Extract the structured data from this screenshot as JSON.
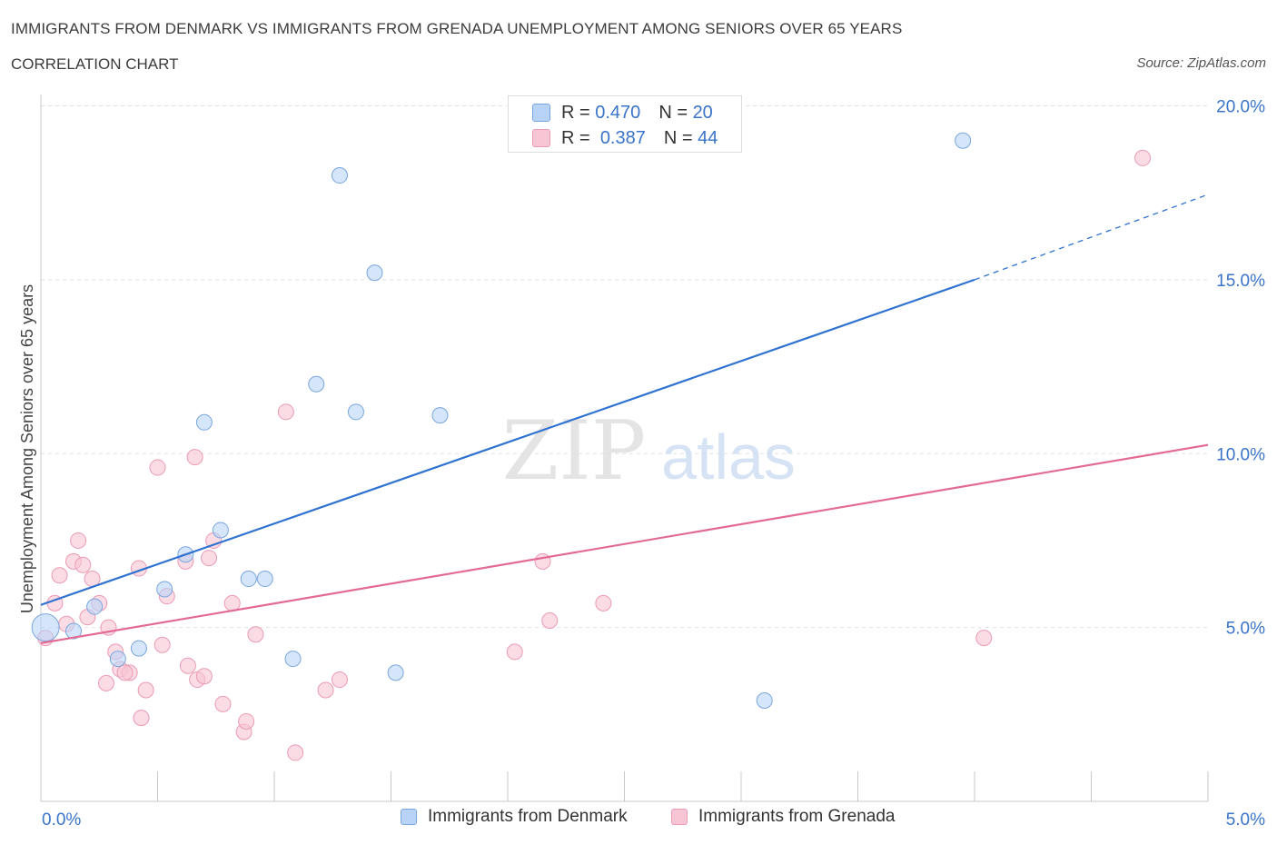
{
  "title": "IMMIGRANTS FROM DENMARK VS IMMIGRANTS FROM GRENADA UNEMPLOYMENT AMONG SENIORS OVER 65 YEARS",
  "subtitle": "CORRELATION CHART",
  "source": "Source: ZipAtlas.com",
  "watermark": {
    "zip": "ZIP",
    "atlas": "atlas"
  },
  "colors": {
    "denmark_fill": "#b9d3f6",
    "denmark_stroke": "#7aa6de",
    "denmark_line": "#2f72d0",
    "grenada_fill": "#f8c5d4",
    "grenada_stroke": "#ea9bb4",
    "grenada_line": "#e36a95",
    "axis_text": "#3a74c9",
    "grid": "#e2e2e2"
  },
  "stats": {
    "denmark": {
      "r_label": "R =",
      "r": "0.470",
      "n_label": "N =",
      "n": "20"
    },
    "grenada": {
      "r_label": "R =",
      "r": "0.387",
      "n_label": "N =",
      "n": "44"
    }
  },
  "chart_data": {
    "type": "scatter",
    "xlabel": "",
    "ylabel": "Unemployment Among Seniors over 65 years",
    "xlim": [
      0,
      5
    ],
    "ylim": [
      0,
      20
    ],
    "x_tick_labels": [
      "0.0%",
      "5.0%"
    ],
    "y_ticks": [
      5,
      10,
      15,
      20
    ],
    "y_tick_labels": [
      "5.0%",
      "10.0%",
      "15.0%",
      "20.0%"
    ],
    "grid": true,
    "legend_position": "bottom",
    "series": [
      {
        "name": "Immigrants from Denmark",
        "points": [
          [
            0.02,
            5.0
          ],
          [
            0.14,
            4.9
          ],
          [
            0.23,
            5.6
          ],
          [
            0.33,
            4.1
          ],
          [
            0.42,
            4.4
          ],
          [
            0.53,
            6.1
          ],
          [
            0.62,
            7.1
          ],
          [
            0.7,
            10.9
          ],
          [
            0.77,
            7.8
          ],
          [
            0.89,
            6.4
          ],
          [
            0.96,
            6.4
          ],
          [
            1.08,
            4.1
          ],
          [
            1.18,
            12.0
          ],
          [
            1.28,
            18.0
          ],
          [
            1.35,
            11.2
          ],
          [
            1.43,
            15.2
          ],
          [
            1.52,
            3.7
          ],
          [
            1.71,
            11.1
          ],
          [
            3.1,
            2.9
          ],
          [
            3.95,
            19.0
          ]
        ],
        "trend": {
          "x0": 0,
          "y0": 5.65,
          "x1": 4.0,
          "y1": 15.0,
          "x_dash_end": 5.0,
          "y_dash_end": 17.45
        }
      },
      {
        "name": "Immigrants from Grenada",
        "points": [
          [
            0.02,
            4.7
          ],
          [
            0.06,
            5.7
          ],
          [
            0.08,
            6.5
          ],
          [
            0.11,
            5.1
          ],
          [
            0.14,
            6.9
          ],
          [
            0.16,
            7.5
          ],
          [
            0.18,
            6.8
          ],
          [
            0.2,
            5.3
          ],
          [
            0.22,
            6.4
          ],
          [
            0.25,
            5.7
          ],
          [
            0.28,
            3.4
          ],
          [
            0.29,
            5.0
          ],
          [
            0.32,
            4.3
          ],
          [
            0.34,
            3.8
          ],
          [
            0.38,
            3.7
          ],
          [
            0.42,
            6.7
          ],
          [
            0.43,
            2.4
          ],
          [
            0.45,
            3.2
          ],
          [
            0.5,
            9.6
          ],
          [
            0.52,
            4.5
          ],
          [
            0.54,
            5.9
          ],
          [
            0.62,
            6.9
          ],
          [
            0.63,
            3.9
          ],
          [
            0.66,
            9.9
          ],
          [
            0.67,
            3.5
          ],
          [
            0.7,
            3.6
          ],
          [
            0.72,
            7.0
          ],
          [
            0.74,
            7.5
          ],
          [
            0.78,
            2.8
          ],
          [
            0.82,
            5.7
          ],
          [
            0.87,
            2.0
          ],
          [
            0.88,
            2.3
          ],
          [
            0.92,
            4.8
          ],
          [
            1.05,
            11.2
          ],
          [
            1.09,
            1.4
          ],
          [
            1.22,
            3.2
          ],
          [
            1.28,
            3.5
          ],
          [
            2.03,
            4.3
          ],
          [
            2.15,
            6.9
          ],
          [
            2.18,
            5.2
          ],
          [
            2.41,
            5.7
          ],
          [
            4.04,
            4.7
          ],
          [
            4.72,
            18.5
          ],
          [
            0.36,
            3.7
          ]
        ],
        "trend": {
          "x0": 0,
          "y0": 4.55,
          "x1": 5.0,
          "y1": 10.25
        }
      }
    ]
  },
  "legend_bottom": {
    "denmark_label": "Immigrants from Denmark",
    "grenada_label": "Immigrants from Grenada"
  }
}
